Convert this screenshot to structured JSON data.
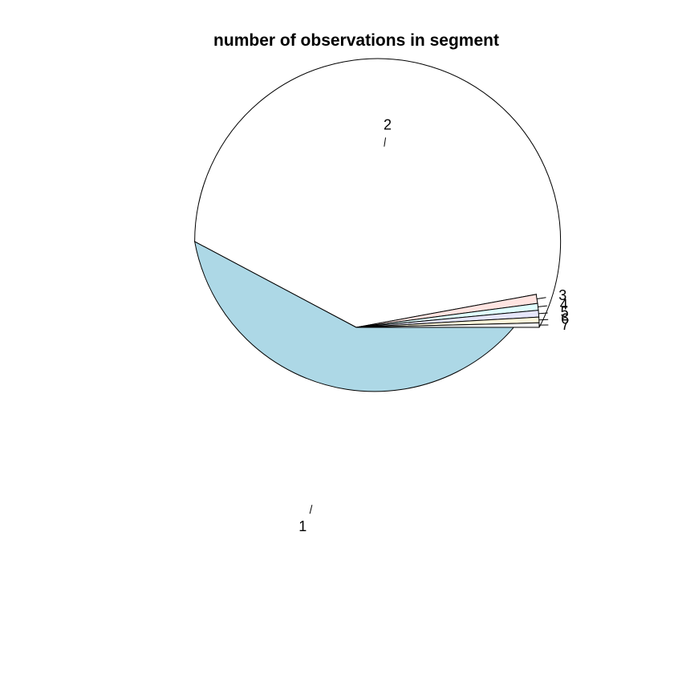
{
  "chart_data": {
    "type": "pie",
    "title": "number of observations in segment",
    "categories": [
      "1",
      "2",
      "3",
      "4",
      "5",
      "6",
      "7"
    ],
    "values": [
      58.0,
      39.5,
      0.8,
      0.6,
      0.6,
      0.5,
      0.4
    ],
    "colors": [
      "#FFFFFF",
      "#ADD8E6",
      "#FFE4E1",
      "#E0FFFF",
      "#E6E6FA",
      "#FFF8DC",
      "#F0F0F0"
    ],
    "start_angle_deg": 0,
    "direction": "counterclockwise"
  }
}
